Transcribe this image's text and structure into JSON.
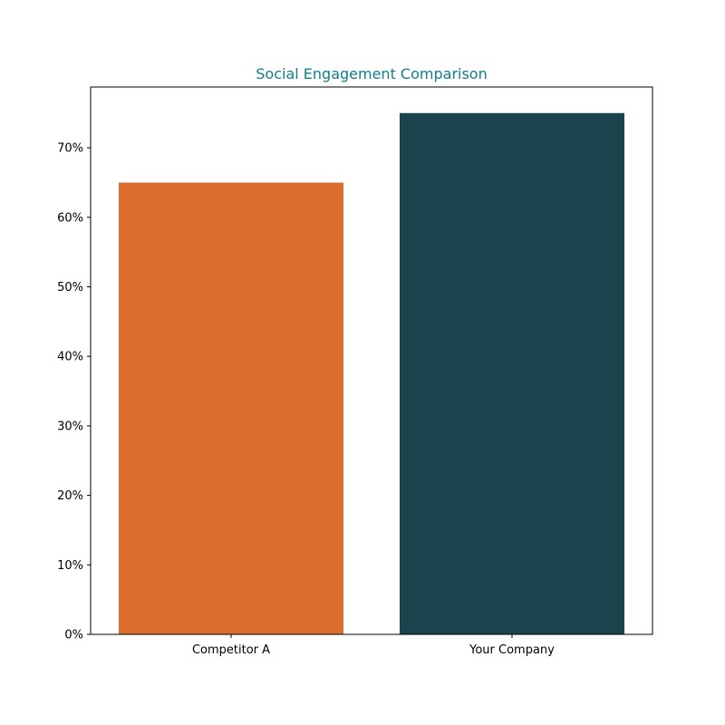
{
  "chart_data": {
    "type": "bar",
    "title": "Social Engagement Comparison",
    "xlabel": "",
    "ylabel": "",
    "categories": [
      "Competitor A",
      "Your Company"
    ],
    "values": [
      65,
      75
    ],
    "colors": [
      "#dc6f2e",
      "#1b444e"
    ],
    "ylim": [
      0,
      78.75
    ],
    "yticks": [
      0,
      10,
      20,
      30,
      40,
      50,
      60,
      70
    ],
    "ytick_labels": [
      "0%",
      "10%",
      "20%",
      "30%",
      "40%",
      "50%",
      "60%",
      "70%"
    ],
    "value_unit": "%",
    "grid": false,
    "legend": "none",
    "title_color": "#0e7f8c"
  }
}
